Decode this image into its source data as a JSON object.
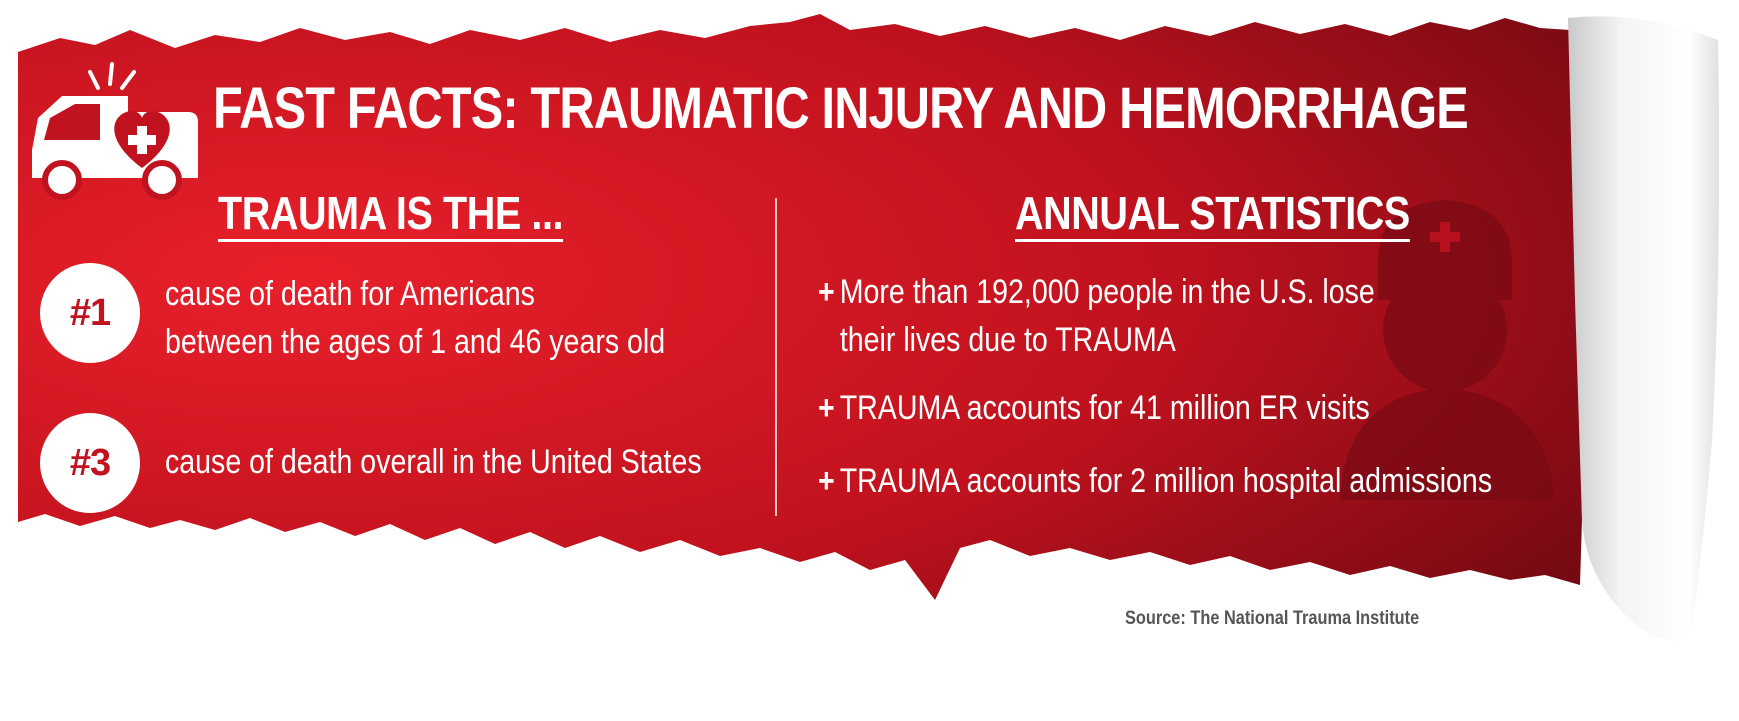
{
  "title": "FAST FACTS: TRAUMATIC INJURY AND HEMORRHAGE",
  "left": {
    "heading": "TRAUMA IS THE ...",
    "facts": [
      {
        "rank": "#1",
        "line1": "cause of death for Americans",
        "line2": "between the ages of 1 and 46 years old"
      },
      {
        "rank": "#3",
        "line1": "cause of death overall in the United States"
      }
    ]
  },
  "right": {
    "heading": "ANNUAL STATISTICS",
    "stats": [
      {
        "plus": "+",
        "line1": "More than 192,000 people in the U.S. lose",
        "line2": "their lives due to TRAUMA"
      },
      {
        "plus": "+",
        "line1": "TRAUMA accounts for 41 million ER visits"
      },
      {
        "plus": "+",
        "line1": "TRAUMA accounts for 2 million hospital admissions"
      }
    ]
  },
  "source": "Source: The National Trauma Institute",
  "colors": {
    "red_dark": "#7a0a14",
    "red": "#c1121f",
    "red_bright": "#e31b23",
    "white": "#ffffff"
  },
  "icons": [
    "ambulance-icon",
    "nurse-icon"
  ]
}
